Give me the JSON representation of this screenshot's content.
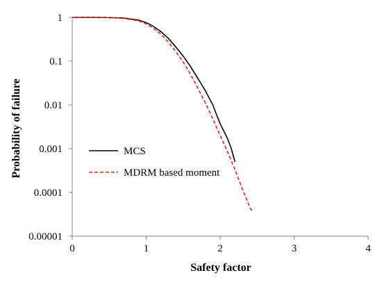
{
  "chart_data": {
    "type": "line",
    "title": "",
    "xlabel": "Safety factor",
    "ylabel": "Probability  of failure",
    "x_ticks": [
      0,
      1,
      2,
      3,
      4
    ],
    "xlim": [
      0,
      4
    ],
    "y_scale": "log",
    "ylim": [
      1e-05,
      1
    ],
    "y_ticks": [
      1,
      0.1,
      0.01,
      0.001,
      0.0001,
      1e-05
    ],
    "y_tick_labels": [
      "1",
      "0.1",
      "0.01",
      "0.001",
      "0.0001",
      "0.00001"
    ],
    "grid": false,
    "legend_position": "left",
    "series": [
      {
        "name": "MCS",
        "color": "#000000",
        "dash": "solid",
        "x": [
          0,
          0.3,
          0.5,
          0.7,
          0.9,
          1.0,
          1.1,
          1.2,
          1.3,
          1.4,
          1.5,
          1.6,
          1.7,
          1.8,
          1.9,
          1.95,
          2.0,
          2.05,
          2.1,
          2.15,
          2.2
        ],
        "y": [
          1,
          0.999,
          0.99,
          0.96,
          0.86,
          0.76,
          0.62,
          0.47,
          0.33,
          0.21,
          0.13,
          0.075,
          0.04,
          0.021,
          0.01,
          0.006,
          0.0037,
          0.0025,
          0.0017,
          0.001,
          0.0005
        ]
      },
      {
        "name": "MDRM based moment",
        "color": "#e02020",
        "dash": "dashed",
        "x": [
          0,
          0.3,
          0.5,
          0.7,
          0.9,
          1.0,
          1.1,
          1.2,
          1.3,
          1.4,
          1.5,
          1.6,
          1.7,
          1.8,
          1.9,
          2.0,
          2.1,
          2.2,
          2.3,
          2.35,
          2.4,
          2.43
        ],
        "y": [
          1,
          0.999,
          0.99,
          0.95,
          0.83,
          0.71,
          0.56,
          0.41,
          0.27,
          0.165,
          0.095,
          0.05,
          0.024,
          0.011,
          0.0048,
          0.002,
          0.00085,
          0.00033,
          0.00012,
          7.5e-05,
          4.5e-05,
          3.8e-05
        ]
      }
    ]
  }
}
